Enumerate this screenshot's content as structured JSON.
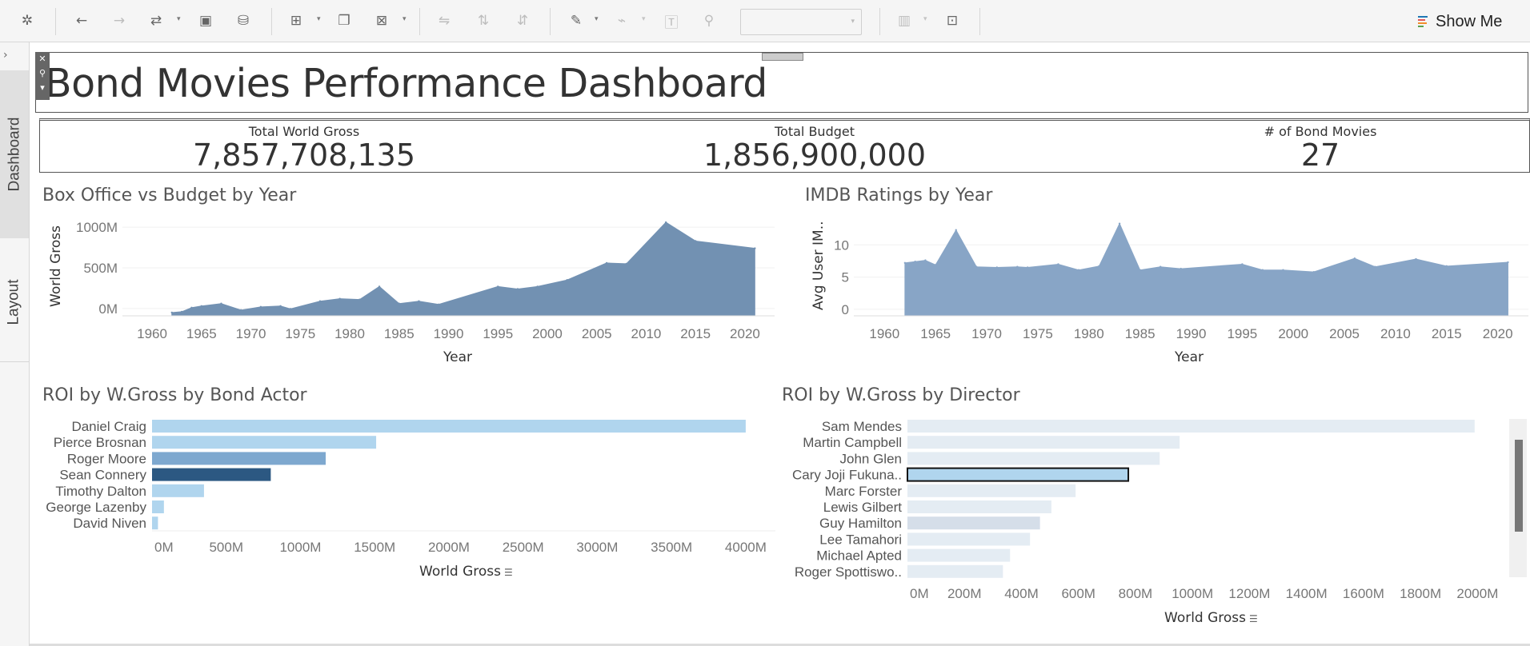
{
  "toolbar": {
    "show_me_label": "Show Me",
    "icons": [
      "tableau-logo-icon",
      "undo-icon",
      "redo-icon",
      "swap-icon",
      "save-icon",
      "new-datasource-icon",
      "new-worksheet-icon",
      "duplicate-icon",
      "clear-sheet-icon",
      "swap-rows-columns-icon",
      "sort-ascending-icon",
      "sort-descending-icon",
      "highlight-icon",
      "group-icon",
      "label-icon",
      "pin-icon",
      "fit-select",
      "bar-chart-icon",
      "presentation-icon"
    ]
  },
  "side_tabs": {
    "dashboard": "Dashboard",
    "layout": "Layout"
  },
  "title": "Bond Movies Performance Dashboard",
  "kpis": [
    {
      "label": "Total World Gross",
      "value": "7,857,708,135"
    },
    {
      "label": "Total Budget",
      "value": "1,856,900,000"
    },
    {
      "label": "# of Bond Movies",
      "value": "27"
    }
  ],
  "chart_data": [
    {
      "type": "area",
      "title": "Box Office vs Budget by Year",
      "xlabel": "Year",
      "ylabel": "World Gross",
      "xlim": [
        1957,
        2023
      ],
      "ylim": [
        -90,
        1100
      ],
      "yticks": [
        0,
        500,
        1000
      ],
      "ytick_labels": [
        "0M",
        "500M",
        "1000M"
      ],
      "xticks": [
        1960,
        1965,
        1970,
        1975,
        1980,
        1985,
        1990,
        1995,
        2000,
        2005,
        2010,
        2015,
        2020
      ],
      "color": "#7291b2",
      "x": [
        1962,
        1963,
        1964,
        1965,
        1967,
        1969,
        1971,
        1973,
        1974,
        1977,
        1979,
        1981,
        1983,
        1985,
        1987,
        1989,
        1995,
        1997,
        1999,
        2002,
        2006,
        2008,
        2012,
        2015,
        2021
      ],
      "values": [
        -50,
        -40,
        10,
        30,
        60,
        -20,
        20,
        30,
        -5,
        90,
        120,
        110,
        270,
        60,
        90,
        50,
        270,
        240,
        270,
        350,
        560,
        550,
        1060,
        830,
        740
      ]
    },
    {
      "type": "area",
      "title": "IMDB Ratings by Year",
      "xlabel": "Year",
      "ylabel": "Avg User IM..",
      "xlim": [
        1957,
        2023
      ],
      "ylim": [
        -1,
        14
      ],
      "yticks": [
        0,
        5,
        10
      ],
      "ytick_labels": [
        "0",
        "5",
        "10"
      ],
      "xticks": [
        1960,
        1965,
        1970,
        1975,
        1980,
        1985,
        1990,
        1995,
        2000,
        2005,
        2010,
        2015,
        2020
      ],
      "color": "#88a5c6",
      "x": [
        1962,
        1963,
        1964,
        1965,
        1967,
        1969,
        1971,
        1973,
        1974,
        1977,
        1979,
        1981,
        1983,
        1985,
        1987,
        1989,
        1995,
        1997,
        1999,
        2002,
        2006,
        2008,
        2012,
        2015,
        2021
      ],
      "values": [
        7.2,
        7.4,
        7.6,
        6.9,
        12.3,
        6.6,
        6.5,
        6.6,
        6.5,
        7.0,
        6.1,
        6.7,
        13.3,
        6.1,
        6.6,
        6.3,
        7.0,
        6.1,
        6.1,
        5.8,
        7.9,
        6.6,
        7.8,
        6.7,
        7.3
      ]
    },
    {
      "type": "bar",
      "title": "ROI by W.Gross by Bond Actor",
      "xlabel": "World Gross",
      "xlim": [
        0,
        4200
      ],
      "xticks": [
        0,
        500,
        1000,
        1500,
        2000,
        2500,
        3000,
        3500,
        4000
      ],
      "xtick_labels": [
        "0M",
        "500M",
        "1000M",
        "1500M",
        "2000M",
        "2500M",
        "3000M",
        "3500M",
        "4000M"
      ],
      "categories": [
        "Daniel Craig",
        "Pierce Brosnan",
        "Roger Moore",
        "Sean Connery",
        "Timothy Dalton",
        "George Lazenby",
        "David Niven"
      ],
      "values": [
        4000,
        1510,
        1170,
        800,
        350,
        80,
        40
      ],
      "colors": [
        "#b0d5ee",
        "#b0d5ee",
        "#7ea8cf",
        "#2c5882",
        "#b0d5ee",
        "#b0d5ee",
        "#b0d5ee"
      ]
    },
    {
      "type": "bar",
      "title": "ROI by W.Gross by Director",
      "xlabel": "World Gross",
      "xlim": [
        0,
        2100
      ],
      "xticks": [
        0,
        200,
        400,
        600,
        800,
        1000,
        1200,
        1400,
        1600,
        1800,
        2000
      ],
      "xtick_labels": [
        "0M",
        "200M",
        "400M",
        "600M",
        "800M",
        "1000M",
        "1200M",
        "1400M",
        "1600M",
        "1800M",
        "2000M"
      ],
      "categories": [
        "Sam Mendes",
        "Martin Campbell",
        "John Glen",
        "Cary Joji Fukuna..",
        "Marc Forster",
        "Lewis Gilbert",
        "Guy Hamilton",
        "Lee Tamahori",
        "Michael Apted",
        "Roger Spottiswo.."
      ],
      "values": [
        1990,
        955,
        885,
        775,
        590,
        505,
        465,
        430,
        360,
        335
      ],
      "colors": [
        "#e4ecf3",
        "#e4ecf3",
        "#e4ecf3",
        "#b0d5ee",
        "#e4ecf3",
        "#e4ecf3",
        "#d5dee9",
        "#e4ecf3",
        "#e4ecf3",
        "#e4ecf3"
      ],
      "selected_index": 3
    }
  ]
}
